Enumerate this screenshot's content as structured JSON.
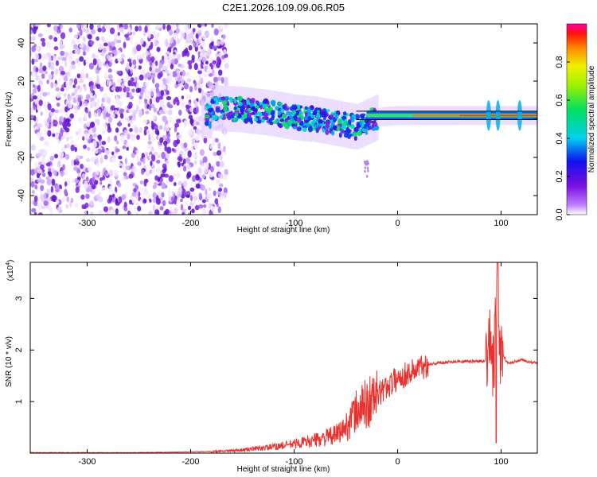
{
  "title": "C2E1.2026.109.09.06.R05",
  "chart_data": [
    {
      "type": "heatmap",
      "name": "spectrogram",
      "xlabel": "Height of straight line (km)",
      "ylabel": "Frequency (Hz)",
      "xlim": [
        -355,
        135
      ],
      "ylim": [
        -50,
        50
      ],
      "xticks": [
        -300,
        -200,
        -100,
        0,
        100
      ],
      "yticks": [
        -40,
        -20,
        0,
        20,
        40
      ],
      "colorbar": {
        "label": "Normalized spectral amplitude",
        "range": [
          0,
          1
        ],
        "ticks": [
          0.0,
          0.2,
          0.4,
          0.6,
          0.8
        ],
        "colormap": "rainbow"
      },
      "features": {
        "noise_region": [
          -355,
          -165
        ],
        "band_center_hz": [
          [
            -180,
            6
          ],
          [
            -150,
            5
          ],
          [
            -120,
            3
          ],
          [
            -100,
            1
          ],
          [
            -80,
            0
          ],
          [
            -60,
            -2
          ],
          [
            -40,
            -4
          ],
          [
            -20,
            1
          ],
          [
            0,
            2
          ],
          [
            40,
            2
          ],
          [
            90,
            2
          ],
          [
            135,
            2
          ]
        ],
        "spikes_km": [
          88,
          97,
          118
        ]
      }
    },
    {
      "type": "line",
      "name": "snr",
      "xlabel": "Height of straight line (km)",
      "ylabel": "SNR (10 * v/v)",
      "y_multiplier": "(x10",
      "y_exponent": "4",
      "y_multiplier_close": ")",
      "xlim": [
        -355,
        135
      ],
      "ylim": [
        0,
        3.7
      ],
      "xticks": [
        -300,
        -200,
        -100,
        0,
        100
      ],
      "yticks": [
        1,
        2,
        3
      ],
      "color": "#e8302c",
      "x": [
        -355,
        -250,
        -180,
        -150,
        -120,
        -100,
        -80,
        -60,
        -50,
        -40,
        -30,
        -20,
        -10,
        0,
        10,
        20,
        30,
        40,
        50,
        60,
        70,
        80,
        85,
        90,
        93,
        96,
        98,
        100,
        105,
        110,
        120,
        130,
        135
      ],
      "y": [
        0.01,
        0.01,
        0.03,
        0.06,
        0.12,
        0.18,
        0.25,
        0.35,
        0.5,
        0.8,
        0.95,
        1.1,
        1.3,
        1.45,
        1.55,
        1.65,
        1.72,
        1.75,
        1.77,
        1.78,
        1.78,
        1.78,
        1.8,
        2.2,
        1.5,
        3.7,
        1.8,
        2.0,
        1.78,
        1.75,
        1.82,
        1.75,
        1.75
      ]
    }
  ]
}
